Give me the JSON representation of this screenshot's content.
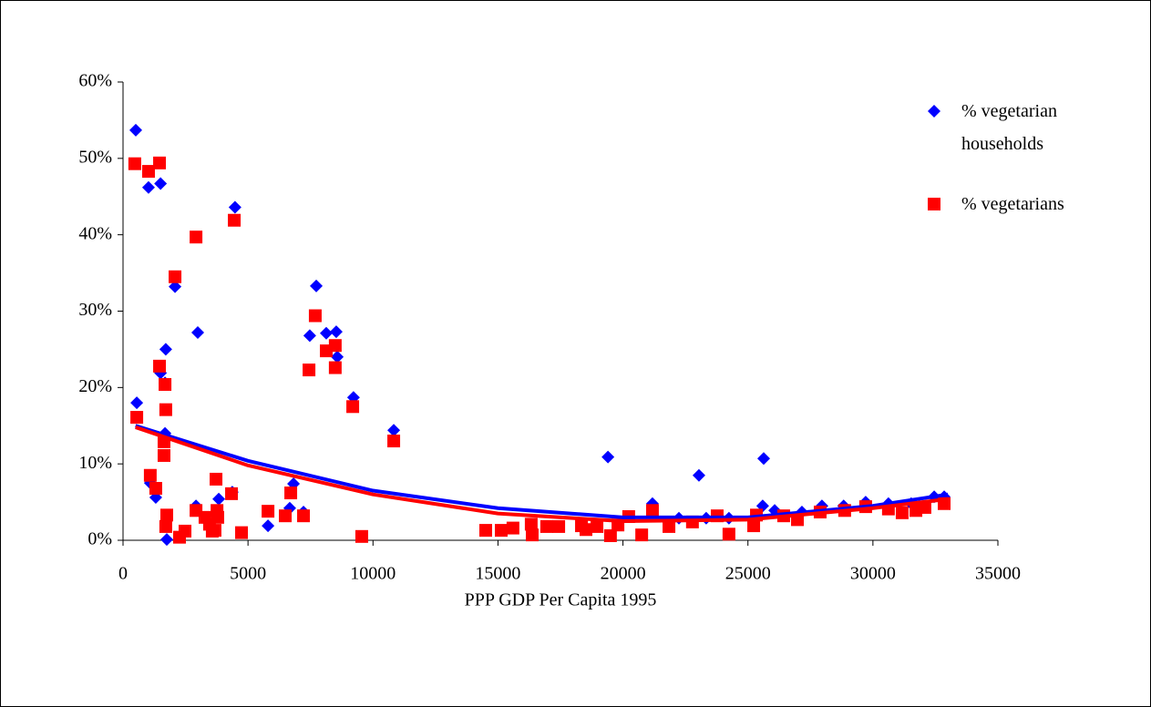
{
  "chart_data": {
    "type": "scatter",
    "xlabel": "PPP GDP Per Capita 1995",
    "xlim": [
      0,
      35000
    ],
    "xticks": [
      0,
      5000,
      10000,
      15000,
      20000,
      25000,
      30000,
      35000
    ],
    "ylim": [
      0,
      60
    ],
    "yticks": [
      {
        "value": 0,
        "label": "0%"
      },
      {
        "value": 10,
        "label": "10%"
      },
      {
        "value": 20,
        "label": "20%"
      },
      {
        "value": 30,
        "label": "30%"
      },
      {
        "value": 40,
        "label": "40%"
      },
      {
        "value": 50,
        "label": "50%"
      },
      {
        "value": 60,
        "label": "60%"
      }
    ],
    "legend": "right",
    "series": [
      {
        "name": "% vegetarian households",
        "color": "#0000ff",
        "marker": "diamond",
        "x": [
          510,
          550,
          1020,
          1500,
          2080,
          1710,
          1500,
          1680,
          1680,
          1090,
          1310,
          1750,
          2990,
          2920,
          3830,
          4480,
          4370,
          5800,
          6670,
          6820,
          7470,
          7220,
          7730,
          8130,
          8530,
          8570,
          9220,
          10830,
          19400,
          21180,
          22240,
          23040,
          23330,
          24240,
          25590,
          25630,
          26070,
          27160,
          27960,
          28830,
          29710,
          30620,
          31530,
          32450,
          32850
        ],
        "values": [
          53.7,
          18.0,
          46.2,
          46.7,
          33.2,
          25.0,
          21.9,
          20.6,
          14.0,
          7.5,
          5.6,
          0.1,
          27.2,
          4.5,
          5.4,
          43.6,
          6.3,
          1.9,
          4.2,
          7.4,
          26.8,
          3.7,
          33.3,
          27.1,
          27.3,
          24.0,
          18.7,
          14.4,
          10.9,
          4.8,
          2.9,
          8.5,
          2.9,
          2.9,
          4.5,
          10.7,
          3.9,
          3.7,
          4.5,
          4.5,
          5.0,
          4.8,
          4.8,
          5.7,
          5.7
        ],
        "trend": {
          "x": [
            500,
            5000,
            10000,
            15000,
            20000,
            25000,
            30000,
            33000
          ],
          "values": [
            15.0,
            10.4,
            6.5,
            4.2,
            3.0,
            3.0,
            4.5,
            6.0
          ]
        }
      },
      {
        "name": "% vegetarians",
        "color": "#ff0000",
        "marker": "square",
        "x": [
          470,
          1020,
          1460,
          2080,
          2920,
          4450,
          550,
          1090,
          1310,
          1460,
          1680,
          1710,
          1640,
          1640,
          1750,
          1710,
          2260,
          2480,
          2920,
          3280,
          3460,
          3570,
          3680,
          3790,
          3760,
          3720,
          4340,
          4740,
          5800,
          6490,
          6710,
          7220,
          7440,
          7690,
          8130,
          8490,
          8490,
          9190,
          9550,
          10830,
          14510,
          15130,
          15600,
          16330,
          16370,
          16950,
          17430,
          18340,
          18520,
          18960,
          19500,
          20230,
          19800,
          20750,
          21180,
          21840,
          22780,
          23770,
          24240,
          25230,
          25340,
          26430,
          26980,
          27890,
          28870,
          29710,
          30620,
          31170,
          31720,
          32080,
          32850
        ],
        "values": [
          49.3,
          48.3,
          49.4,
          34.5,
          39.7,
          41.9,
          16.1,
          8.5,
          6.8,
          22.8,
          20.4,
          17.1,
          12.9,
          11.1,
          3.3,
          1.8,
          0.4,
          1.2,
          3.9,
          3.0,
          2.1,
          1.2,
          1.3,
          3.0,
          3.9,
          8.0,
          6.1,
          1.0,
          3.8,
          3.2,
          6.2,
          3.2,
          22.3,
          29.4,
          24.8,
          25.5,
          22.6,
          17.5,
          0.5,
          13.0,
          1.3,
          1.3,
          1.6,
          2.1,
          0.7,
          1.8,
          1.8,
          1.9,
          1.4,
          1.8,
          0.6,
          3.1,
          2.0,
          0.7,
          3.9,
          1.8,
          2.4,
          3.2,
          0.8,
          1.9,
          3.3,
          3.2,
          2.7,
          3.7,
          3.9,
          4.4,
          4.1,
          3.6,
          3.9,
          4.3,
          4.8
        ],
        "trend": {
          "x": [
            500,
            5000,
            10000,
            15000,
            20000,
            25000,
            30000,
            33000
          ],
          "values": [
            14.8,
            9.8,
            6.0,
            3.5,
            2.5,
            2.7,
            4.2,
            5.4
          ]
        }
      }
    ]
  }
}
